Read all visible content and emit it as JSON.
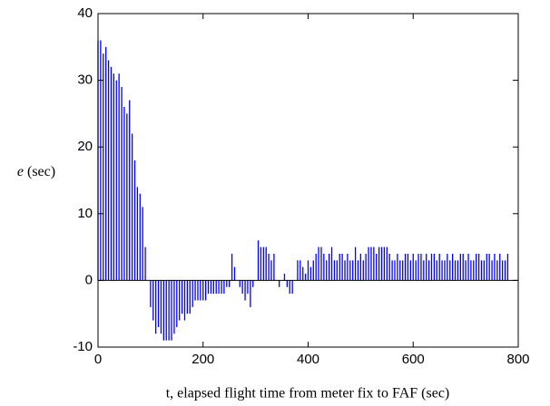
{
  "chart_data": {
    "type": "stem",
    "xlabel": "t, elapsed flight time from meter fix to FAF (sec)",
    "ylabel": "e (sec)",
    "x": [
      0,
      5,
      10,
      15,
      20,
      25,
      30,
      35,
      40,
      45,
      50,
      55,
      60,
      65,
      70,
      75,
      80,
      85,
      90,
      95,
      100,
      105,
      110,
      115,
      120,
      125,
      130,
      135,
      140,
      145,
      150,
      155,
      160,
      165,
      170,
      175,
      180,
      185,
      190,
      195,
      200,
      205,
      210,
      215,
      220,
      225,
      230,
      235,
      240,
      245,
      250,
      255,
      260,
      265,
      270,
      275,
      280,
      285,
      290,
      295,
      300,
      305,
      310,
      315,
      320,
      325,
      330,
      335,
      340,
      345,
      350,
      355,
      360,
      365,
      370,
      375,
      380,
      385,
      390,
      395,
      400,
      405,
      410,
      415,
      420,
      425,
      430,
      435,
      440,
      445,
      450,
      455,
      460,
      465,
      470,
      475,
      480,
      485,
      490,
      495,
      500,
      505,
      510,
      515,
      520,
      525,
      530,
      535,
      540,
      545,
      550,
      555,
      560,
      565,
      570,
      575,
      580,
      585,
      590,
      595,
      600,
      605,
      610,
      615,
      620,
      625,
      630,
      635,
      640,
      645,
      650,
      655,
      660,
      665,
      670,
      675,
      680,
      685,
      690,
      695,
      700,
      705,
      710,
      715,
      720,
      725,
      730,
      735,
      740,
      745,
      750,
      755,
      760,
      765,
      770,
      775,
      780
    ],
    "values": [
      36,
      36,
      34,
      35,
      33,
      32,
      31,
      30,
      31,
      29,
      26,
      25,
      27,
      22,
      18,
      14,
      13,
      11,
      5,
      0,
      -4,
      -6,
      -8,
      -7,
      -8,
      -9,
      -9,
      -9,
      -9,
      -8,
      -7,
      -6,
      -5,
      -6,
      -5,
      -5,
      -4,
      -3,
      -3,
      -3,
      -3,
      -3,
      -2,
      -2,
      -2,
      -2,
      -2,
      -2,
      -2,
      -1,
      -1,
      4,
      2,
      0,
      -1,
      -2,
      -3,
      -2,
      -4,
      -1,
      0,
      6,
      5,
      5,
      5,
      4,
      3,
      4,
      0,
      -1,
      0,
      1,
      -1,
      -2,
      -2,
      0,
      3,
      3,
      2,
      1,
      3,
      2,
      3,
      4,
      5,
      5,
      4,
      3,
      4,
      5,
      3,
      3,
      4,
      4,
      3,
      4,
      3,
      3,
      5,
      3,
      4,
      3,
      4,
      5,
      5,
      5,
      4,
      5,
      5,
      5,
      5,
      4,
      3,
      3,
      4,
      3,
      3,
      4,
      4,
      3,
      4,
      3,
      4,
      4,
      3,
      4,
      3,
      4,
      4,
      3,
      4,
      3,
      3,
      4,
      3,
      4,
      3,
      3,
      4,
      4,
      3,
      4,
      3,
      3,
      4,
      4,
      3,
      3,
      4,
      4,
      3,
      4,
      3,
      4,
      3,
      3,
      4
    ],
    "color": "#0000ff",
    "xlim": [
      0,
      800
    ],
    "xticks": [
      0,
      200,
      400,
      600,
      800
    ],
    "ylim": [
      -10,
      40
    ],
    "yticks": [
      -10,
      0,
      10,
      20,
      30,
      40
    ]
  }
}
